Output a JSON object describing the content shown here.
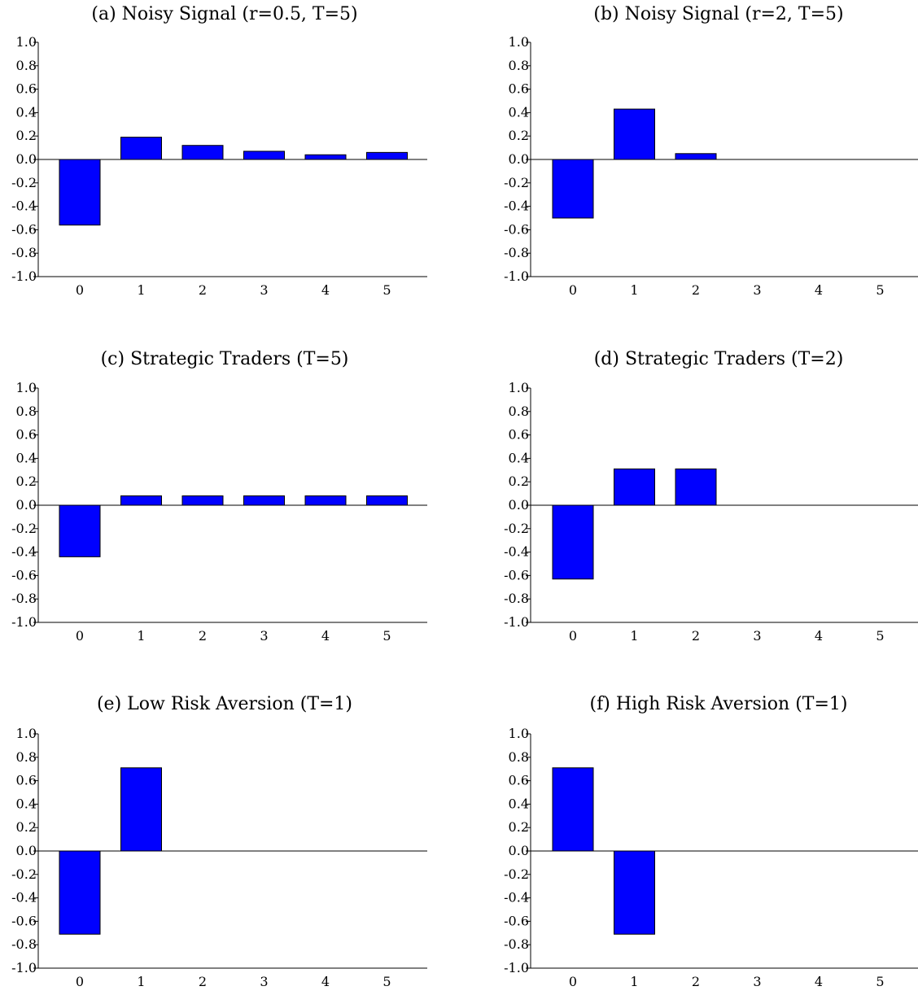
{
  "chart_data": [
    {
      "type": "bar",
      "title": "(a) Noisy Signal (r=0.5, T=5)",
      "categories": [
        "0",
        "1",
        "2",
        "3",
        "4",
        "5"
      ],
      "values": [
        -0.56,
        0.19,
        0.12,
        0.07,
        0.04,
        0.06
      ],
      "ylim": [
        -1.0,
        1.0
      ],
      "yticks": [
        "1.0",
        "0.8",
        "0.6",
        "0.4",
        "0.2",
        "0.0",
        "-0.2",
        "-0.4",
        "-0.6",
        "-0.8",
        "-1.0"
      ],
      "xlabel": "",
      "ylabel": "",
      "grid": false
    },
    {
      "type": "bar",
      "title": "(b) Noisy Signal (r=2, T=5)",
      "categories": [
        "0",
        "1",
        "2",
        "3",
        "4",
        "5"
      ],
      "values": [
        -0.5,
        0.43,
        0.05,
        0.0,
        0.0,
        0.0
      ],
      "ylim": [
        -1.0,
        1.0
      ],
      "yticks": [
        "1.0",
        "0.8",
        "0.6",
        "0.4",
        "0.2",
        "0.0",
        "-0.2",
        "-0.4",
        "-0.6",
        "-0.8",
        "-1.0"
      ],
      "xlabel": "",
      "ylabel": "",
      "grid": false
    },
    {
      "type": "bar",
      "title": "(c) Strategic Traders (T=5)",
      "categories": [
        "0",
        "1",
        "2",
        "3",
        "4",
        "5"
      ],
      "values": [
        -0.44,
        0.08,
        0.08,
        0.08,
        0.08,
        0.08
      ],
      "ylim": [
        -1.0,
        1.0
      ],
      "yticks": [
        "1.0",
        "0.8",
        "0.6",
        "0.4",
        "0.2",
        "0.0",
        "-0.2",
        "-0.4",
        "-0.6",
        "-0.8",
        "-1.0"
      ],
      "xlabel": "",
      "ylabel": "",
      "grid": false
    },
    {
      "type": "bar",
      "title": "(d) Strategic Traders (T=2)",
      "categories": [
        "0",
        "1",
        "2",
        "3",
        "4",
        "5"
      ],
      "values": [
        -0.63,
        0.31,
        0.31,
        0.0,
        0.0,
        0.0
      ],
      "ylim": [
        -1.0,
        1.0
      ],
      "yticks": [
        "1.0",
        "0.8",
        "0.6",
        "0.4",
        "0.2",
        "0.0",
        "-0.2",
        "-0.4",
        "-0.6",
        "-0.8",
        "-1.0"
      ],
      "xlabel": "",
      "ylabel": "",
      "grid": false
    },
    {
      "type": "bar",
      "title": "(e) Low Risk Aversion (T=1)",
      "categories": [
        "0",
        "1",
        "2",
        "3",
        "4",
        "5"
      ],
      "values": [
        -0.71,
        0.71,
        0.0,
        0.0,
        0.0,
        0.0
      ],
      "ylim": [
        -1.0,
        1.0
      ],
      "yticks": [
        "1.0",
        "0.8",
        "0.6",
        "0.4",
        "0.2",
        "0.0",
        "-0.2",
        "-0.4",
        "-0.6",
        "-0.8",
        "-1.0"
      ],
      "xlabel": "",
      "ylabel": "",
      "grid": false
    },
    {
      "type": "bar",
      "title": "(f) High Risk Aversion (T=1)",
      "categories": [
        "0",
        "1",
        "2",
        "3",
        "4",
        "5"
      ],
      "values": [
        0.71,
        -0.71,
        0.0,
        0.0,
        0.0,
        0.0
      ],
      "ylim": [
        -1.0,
        1.0
      ],
      "yticks": [
        "1.0",
        "0.8",
        "0.6",
        "0.4",
        "0.2",
        "0.0",
        "-0.2",
        "-0.4",
        "-0.6",
        "-0.8",
        "-1.0"
      ],
      "xlabel": "",
      "ylabel": "",
      "grid": false
    }
  ],
  "colors": {
    "bar_fill": "#0000ff",
    "bar_stroke": "#000000",
    "axis": "#000000",
    "background": "#ffffff"
  }
}
